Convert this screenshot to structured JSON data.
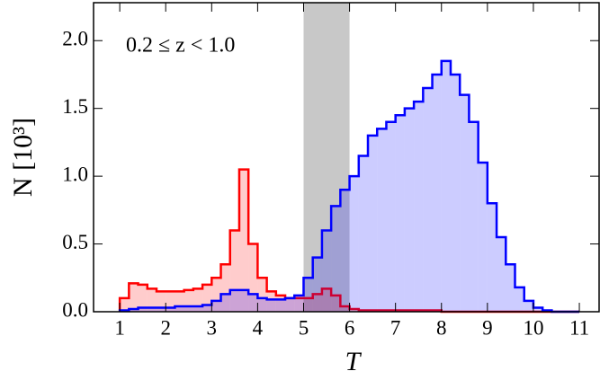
{
  "chart_data": {
    "type": "histogram",
    "annotation": "0.2 ≤ z < 1.0",
    "xlabel": "T",
    "ylabel": "N [10³]",
    "bins": [
      1.0,
      1.2,
      1.4,
      1.6,
      1.8,
      2.0,
      2.2,
      2.4,
      2.6,
      2.8,
      3.0,
      3.2,
      3.4,
      3.6,
      3.8,
      4.0,
      4.2,
      4.4,
      4.6,
      4.8,
      5.0,
      5.2,
      5.4,
      5.6,
      5.8,
      6.0,
      6.2,
      6.4,
      6.6,
      6.8,
      7.0,
      7.2,
      7.4,
      7.6,
      7.8,
      8.0,
      8.2,
      8.4,
      8.6,
      8.8,
      9.0,
      9.2,
      9.4,
      9.6,
      9.8,
      10.0,
      10.2,
      10.4,
      10.6,
      10.8,
      11.0
    ],
    "series": [
      {
        "color": "#ff0000",
        "values": [
          0.1,
          0.21,
          0.2,
          0.17,
          0.15,
          0.15,
          0.15,
          0.16,
          0.17,
          0.2,
          0.25,
          0.35,
          0.6,
          1.05,
          0.5,
          0.25,
          0.15,
          0.12,
          0.1,
          0.1,
          0.1,
          0.13,
          0.17,
          0.12,
          0.04,
          0.02,
          0.01,
          0.01,
          0.01,
          0.01,
          0.01,
          0.01,
          0.01,
          0.01,
          0.01,
          0,
          0,
          0,
          0,
          0,
          0,
          0,
          0,
          0,
          0,
          0,
          0,
          0,
          0,
          0
        ]
      },
      {
        "color": "#0000ff",
        "values": [
          0.01,
          0.02,
          0.03,
          0.03,
          0.03,
          0.03,
          0.04,
          0.04,
          0.04,
          0.05,
          0.08,
          0.13,
          0.16,
          0.16,
          0.13,
          0.1,
          0.09,
          0.09,
          0.1,
          0.12,
          0.25,
          0.4,
          0.6,
          0.78,
          0.9,
          1.0,
          1.15,
          1.3,
          1.35,
          1.4,
          1.45,
          1.5,
          1.55,
          1.65,
          1.75,
          1.85,
          1.75,
          1.6,
          1.4,
          1.1,
          0.8,
          0.55,
          0.35,
          0.18,
          0.08,
          0.03,
          0.01,
          0,
          0,
          0
        ]
      }
    ],
    "shaded_region": [
      5,
      6
    ],
    "shaded_color": "#c8c8c8",
    "xlim": [
      0.43,
      11.43
    ],
    "ylim": [
      0,
      2.28
    ],
    "xticks": [
      1,
      2,
      3,
      4,
      5,
      6,
      7,
      8,
      9,
      10,
      11
    ],
    "yticks": [
      {
        "value": 0,
        "label": "0.0"
      },
      0.5,
      {
        "value": 1,
        "label": "1.0"
      },
      1.5,
      {
        "value": 2,
        "label": "2.0"
      }
    ]
  }
}
